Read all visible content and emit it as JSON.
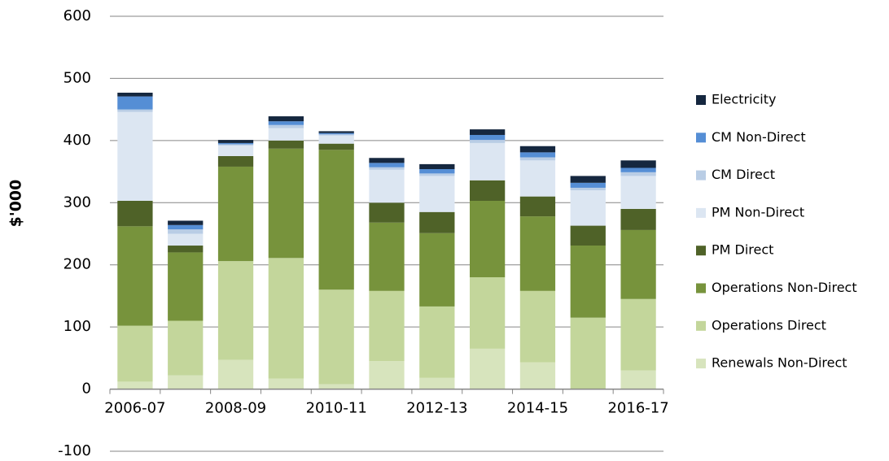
{
  "chart_data": {
    "type": "stacked-bar",
    "y_label": "$'000",
    "categories": [
      "2006-07",
      null,
      "2008-09",
      null,
      "2010-11",
      null,
      "2012-13",
      null,
      "2014-15",
      null,
      "2016-17"
    ],
    "series": [
      {
        "name": "Renewals Non-Direct",
        "color": "#d7e4bd",
        "values": [
          12,
          22,
          47,
          17,
          8,
          45,
          18,
          65,
          43,
          0,
          30
        ]
      },
      {
        "name": "Operations Direct",
        "color": "#c3d69b",
        "values": [
          90,
          88,
          159,
          194,
          152,
          113,
          115,
          115,
          115,
          115,
          115
        ]
      },
      {
        "name": "Operations Non-Direct",
        "color": "#77933c",
        "values": [
          160,
          110,
          152,
          176,
          225,
          110,
          118,
          123,
          120,
          116,
          111
        ]
      },
      {
        "name": "PM Direct",
        "color": "#4f6228",
        "values": [
          41,
          11,
          17,
          13,
          10,
          32,
          34,
          33,
          32,
          32,
          34
        ]
      },
      {
        "name": "PM Non-Direct",
        "color": "#dce6f2",
        "values": [
          143,
          19,
          17,
          20,
          13,
          53,
          58,
          60,
          58,
          57,
          53
        ]
      },
      {
        "name": "CM Direct",
        "color": "#b9cde5",
        "values": [
          4,
          7,
          2,
          5,
          2,
          4,
          4,
          5,
          5,
          4,
          6
        ]
      },
      {
        "name": "CM Non-Direct",
        "color": "#558ed5",
        "values": [
          21,
          7,
          2,
          6,
          2,
          7,
          7,
          8,
          8,
          8,
          7
        ]
      },
      {
        "name": "Electricity",
        "color": "#15273f",
        "values": [
          6,
          7,
          5,
          8,
          3,
          8,
          8,
          9,
          10,
          11,
          12
        ]
      }
    ],
    "ylim": [
      -100,
      600
    ],
    "yticks": [
      -100,
      0,
      100,
      200,
      300,
      400,
      500,
      600
    ],
    "grid": true
  }
}
